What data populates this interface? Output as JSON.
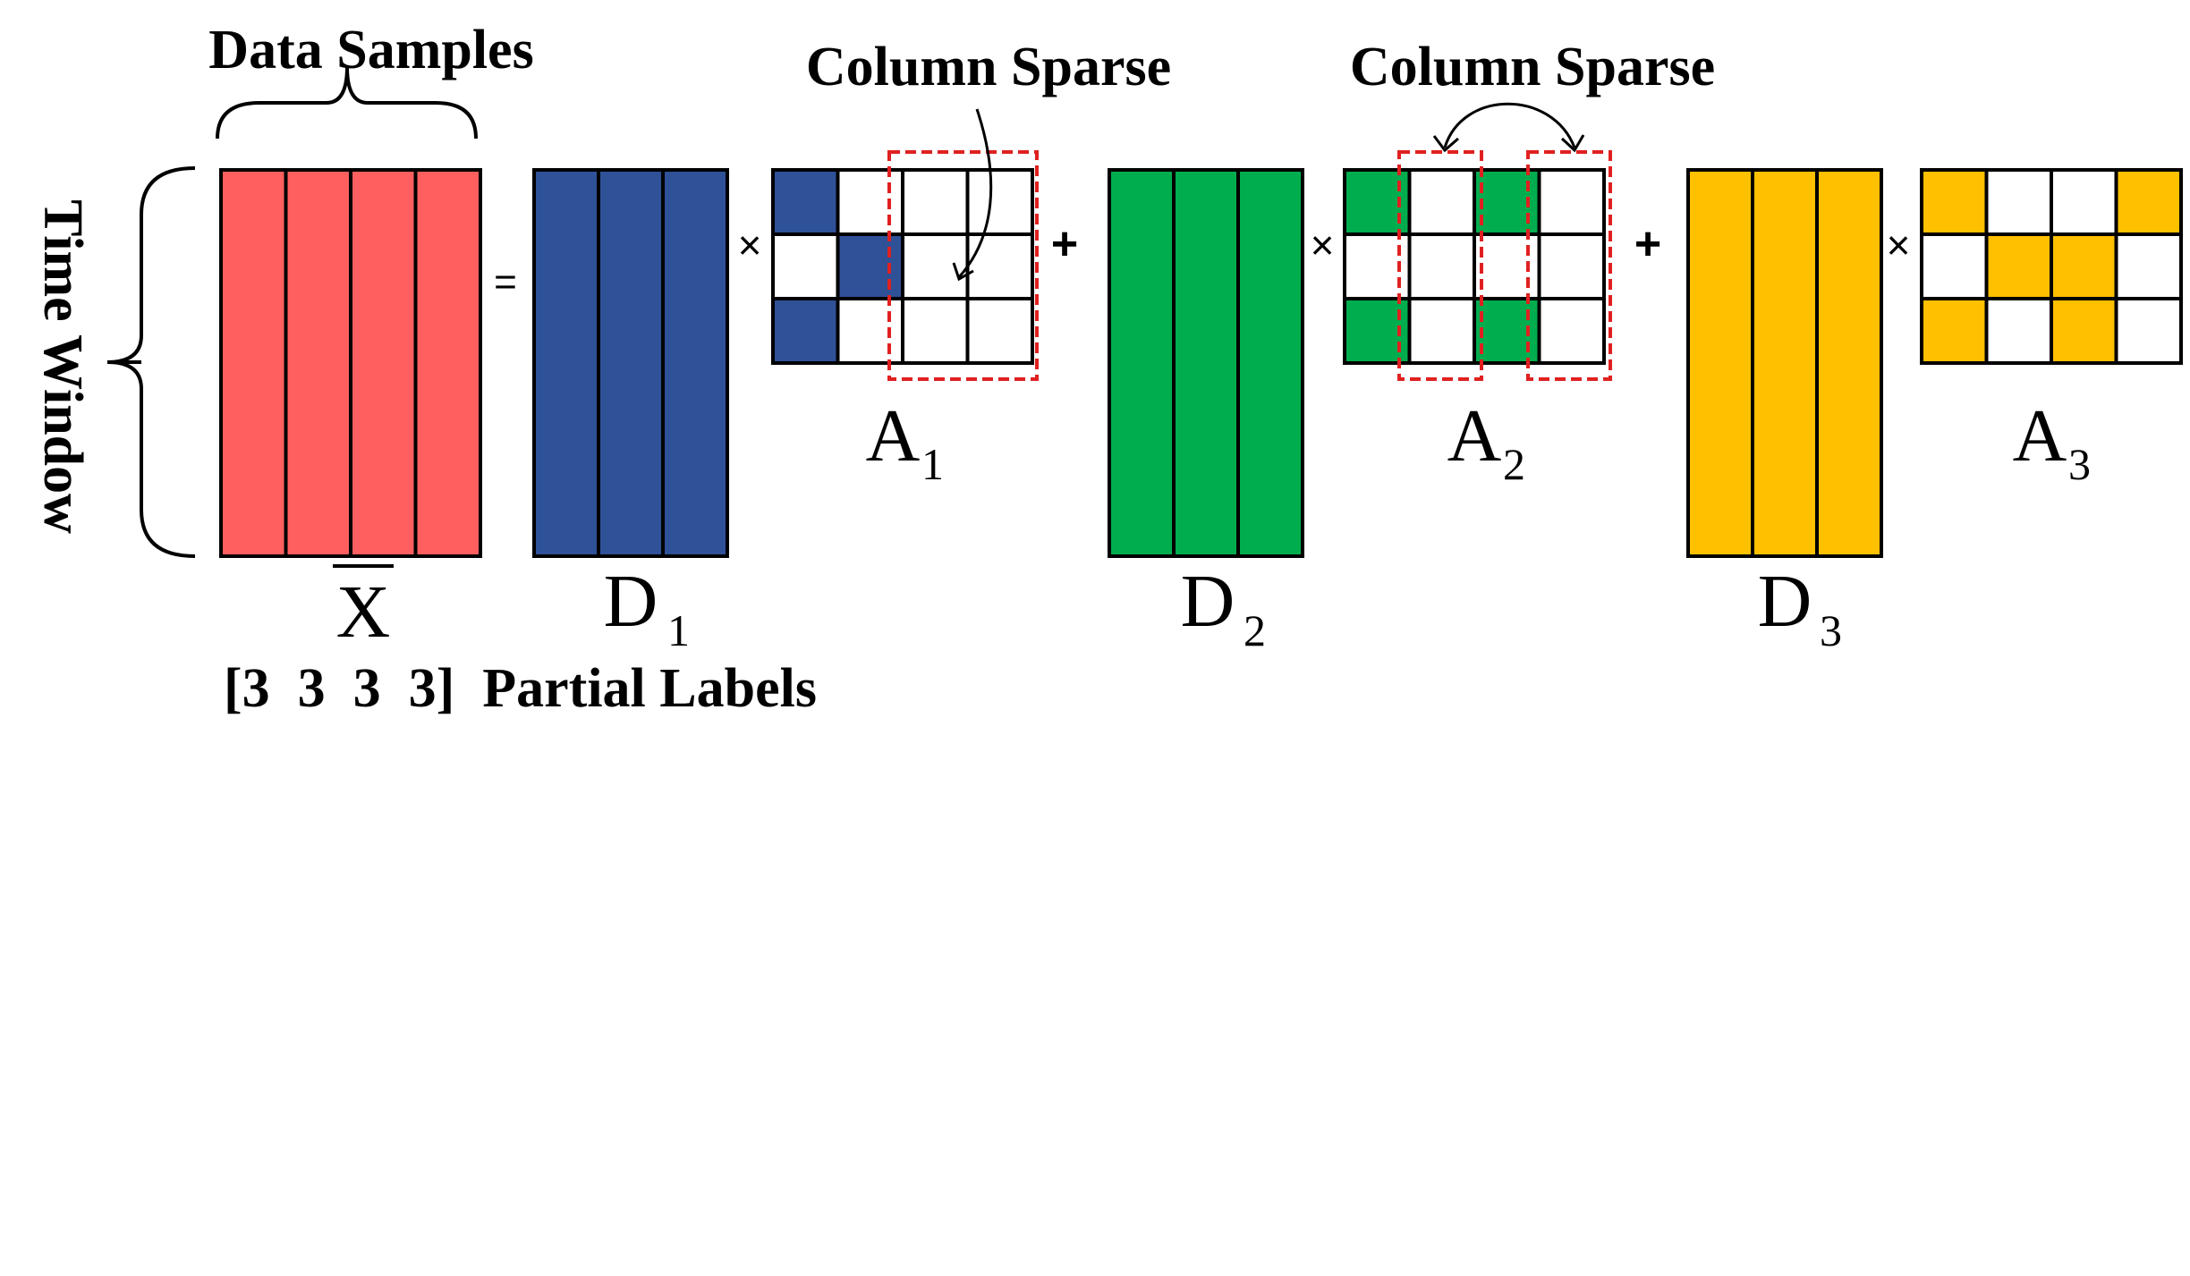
{
  "labels": {
    "data_samples": "Data Samples",
    "time_window": "Time Window",
    "column_sparse_1": "Column Sparse",
    "column_sparse_2": "Column Sparse",
    "partial_labels": "[3  3  3  3]  Partial Labels"
  },
  "operators": {
    "equals": "=",
    "times": "×",
    "plus": "+"
  },
  "matrices": {
    "X": {
      "letter": "X",
      "sub": ""
    },
    "D1": {
      "letter": "D",
      "sub": "1"
    },
    "D2": {
      "letter": "D",
      "sub": "2"
    },
    "D3": {
      "letter": "D",
      "sub": "3"
    },
    "A1": {
      "letter": "A",
      "sub": "1"
    },
    "A2": {
      "letter": "A",
      "sub": "2"
    },
    "A3": {
      "letter": "A",
      "sub": "3"
    }
  },
  "colors": {
    "X": "#ff5f5f",
    "D1": "#2f5198",
    "D2": "#00ad4e",
    "D3": "#ffc000",
    "highlight": "#e02020",
    "line": "#000000"
  },
  "grids": {
    "A1": [
      [
        1,
        0,
        0,
        0
      ],
      [
        0,
        1,
        0,
        0
      ],
      [
        1,
        0,
        0,
        0
      ]
    ],
    "A2": [
      [
        1,
        0,
        1,
        0
      ],
      [
        0,
        0,
        0,
        0
      ],
      [
        1,
        0,
        1,
        0
      ]
    ],
    "A3": [
      [
        1,
        0,
        0,
        1
      ],
      [
        0,
        1,
        1,
        0
      ],
      [
        1,
        0,
        1,
        0
      ]
    ]
  }
}
